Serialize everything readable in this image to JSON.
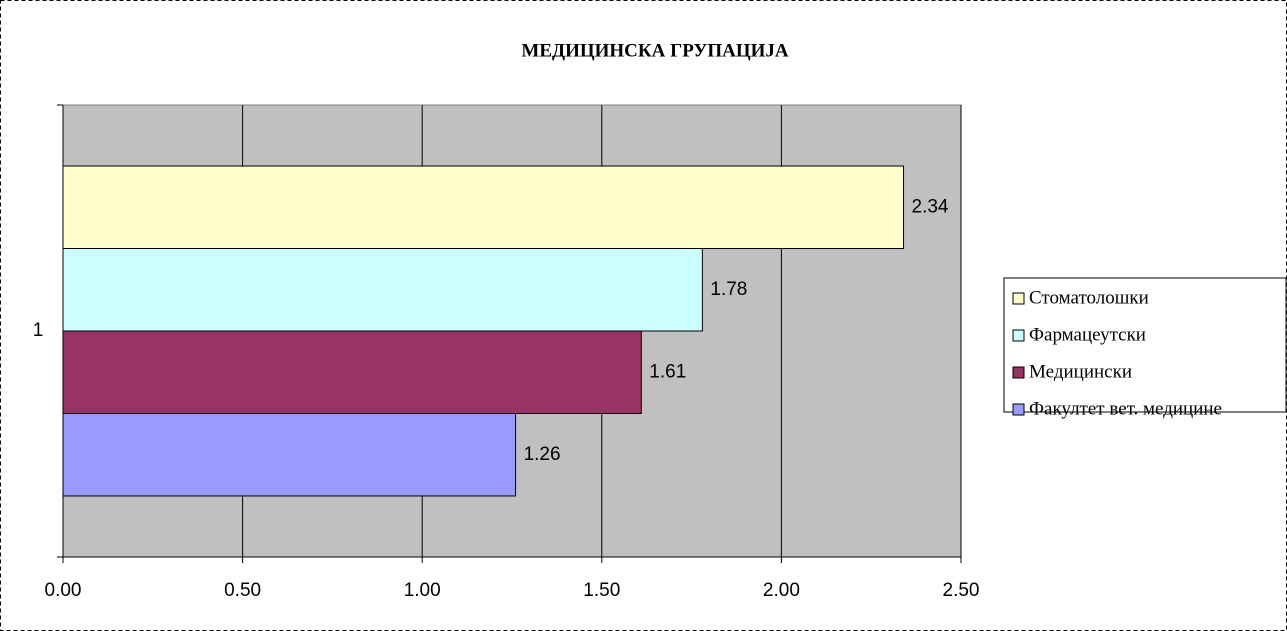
{
  "chart_data": {
    "type": "bar",
    "orientation": "horizontal",
    "title": "МЕДИЦИНСКА ГРУПАЦИЈА",
    "categories": [
      "1"
    ],
    "series": [
      {
        "name": "Стоматолошки",
        "color": "#ffffcc",
        "values": [
          2.34
        ]
      },
      {
        "name": "Фармацеутски",
        "color": "#ccffff",
        "values": [
          1.78
        ]
      },
      {
        "name": "Медицински",
        "color": "#993366",
        "values": [
          1.61
        ]
      },
      {
        "name": "Факултет вет. медицине",
        "color": "#9999ff",
        "values": [
          1.26
        ]
      }
    ],
    "xlim": [
      0,
      2.5
    ],
    "xticks": [
      {
        "value": 0,
        "label": "0.00"
      },
      {
        "value": 0.5,
        "label": "0.50"
      },
      {
        "value": 1,
        "label": "1.00"
      },
      {
        "value": 1.5,
        "label": "1.50"
      },
      {
        "value": 2,
        "label": "2.00"
      },
      {
        "value": 2.5,
        "label": "2.50"
      }
    ],
    "grid": true,
    "plot_background": "#c0c0c0",
    "legend": "right"
  }
}
